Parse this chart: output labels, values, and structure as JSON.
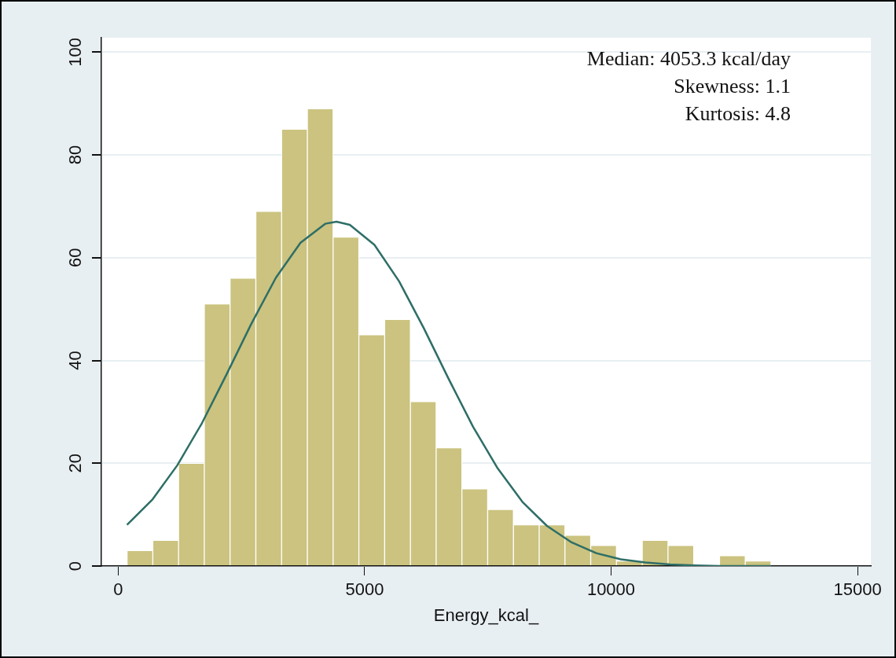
{
  "chart_data": {
    "type": "histogram",
    "xlabel": "Energy_kcal_",
    "bins": [
      180,
      703,
      1225,
      1748,
      2270,
      2793,
      3316,
      3838,
      4361,
      4883,
      5406,
      5929,
      6451,
      6974,
      7496,
      8019,
      8542,
      9064,
      9587,
      10109,
      10632,
      11155,
      11677,
      12200,
      12722,
      13245
    ],
    "values": [
      3,
      5,
      20,
      51,
      56,
      69,
      85,
      89,
      64,
      45,
      48,
      32,
      23,
      15,
      11,
      8,
      8,
      6,
      4,
      1,
      5,
      4,
      0,
      2,
      1
    ],
    "color": "#cbc37f",
    "series": [
      {
        "type": "line",
        "color": "#2e6e67",
        "x": [
          180,
          700,
          1200,
          1700,
          2200,
          2700,
          3200,
          3700,
          4200,
          4430,
          4700,
          5200,
          5700,
          6200,
          6700,
          7200,
          7700,
          8200,
          8700,
          9200,
          9700,
          10200,
          10700,
          11200,
          11700,
          12200,
          13245
        ],
        "values": [
          8.0,
          13.0,
          19.6,
          27.8,
          37.3,
          47.1,
          56.1,
          62.9,
          66.6,
          67,
          66.4,
          62.5,
          55.4,
          46.3,
          36.5,
          27.1,
          19.0,
          12.5,
          7.8,
          4.6,
          2.5,
          1.3,
          0.7,
          0.3,
          0.1,
          0,
          0
        ]
      }
    ],
    "xlim": [
      -340,
      15270
    ],
    "xticks": [
      0,
      5000,
      10000,
      15000
    ],
    "ylim": [
      0,
      102.8
    ],
    "yticks": [
      0,
      20,
      40,
      60,
      80,
      100
    ],
    "grid": "y",
    "marker": "none",
    "line_style": "solid",
    "annotations": [
      "Median: 4053.3 kcal/day",
      "Skewness: 1.1",
      "Kurtosis: 4.8"
    ]
  }
}
